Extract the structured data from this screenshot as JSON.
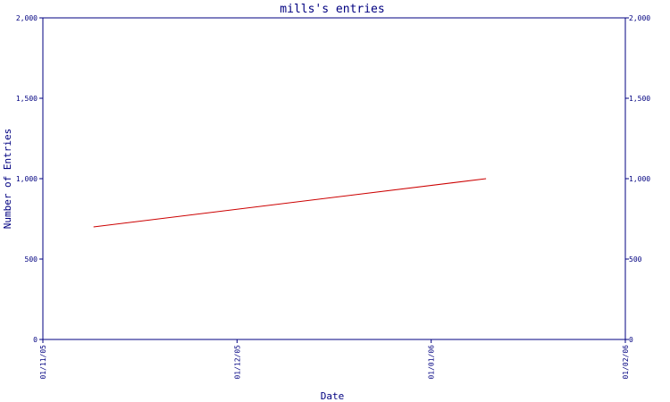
{
  "chart_data": {
    "type": "line",
    "title": "mills's entries",
    "xlabel": "Date",
    "ylabel": "Number of Entries",
    "x_ticks": [
      "01/11/05",
      "01/12/05",
      "01/01/06",
      "01/02/06"
    ],
    "x_range": [
      "2005-11-01",
      "2006-02-01"
    ],
    "y_ticks": [
      "0",
      "500",
      "1,000",
      "1,500",
      "2,000"
    ],
    "y_tick_values": [
      0,
      500,
      1000,
      1500,
      2000
    ],
    "ylim": [
      0,
      2000
    ],
    "right_axis": true,
    "grid": false,
    "series": [
      {
        "color": "#cc0000",
        "points": [
          {
            "x": "2005-11-09",
            "y": 700
          },
          {
            "x": "2006-01-10",
            "y": 1000
          }
        ]
      }
    ]
  }
}
